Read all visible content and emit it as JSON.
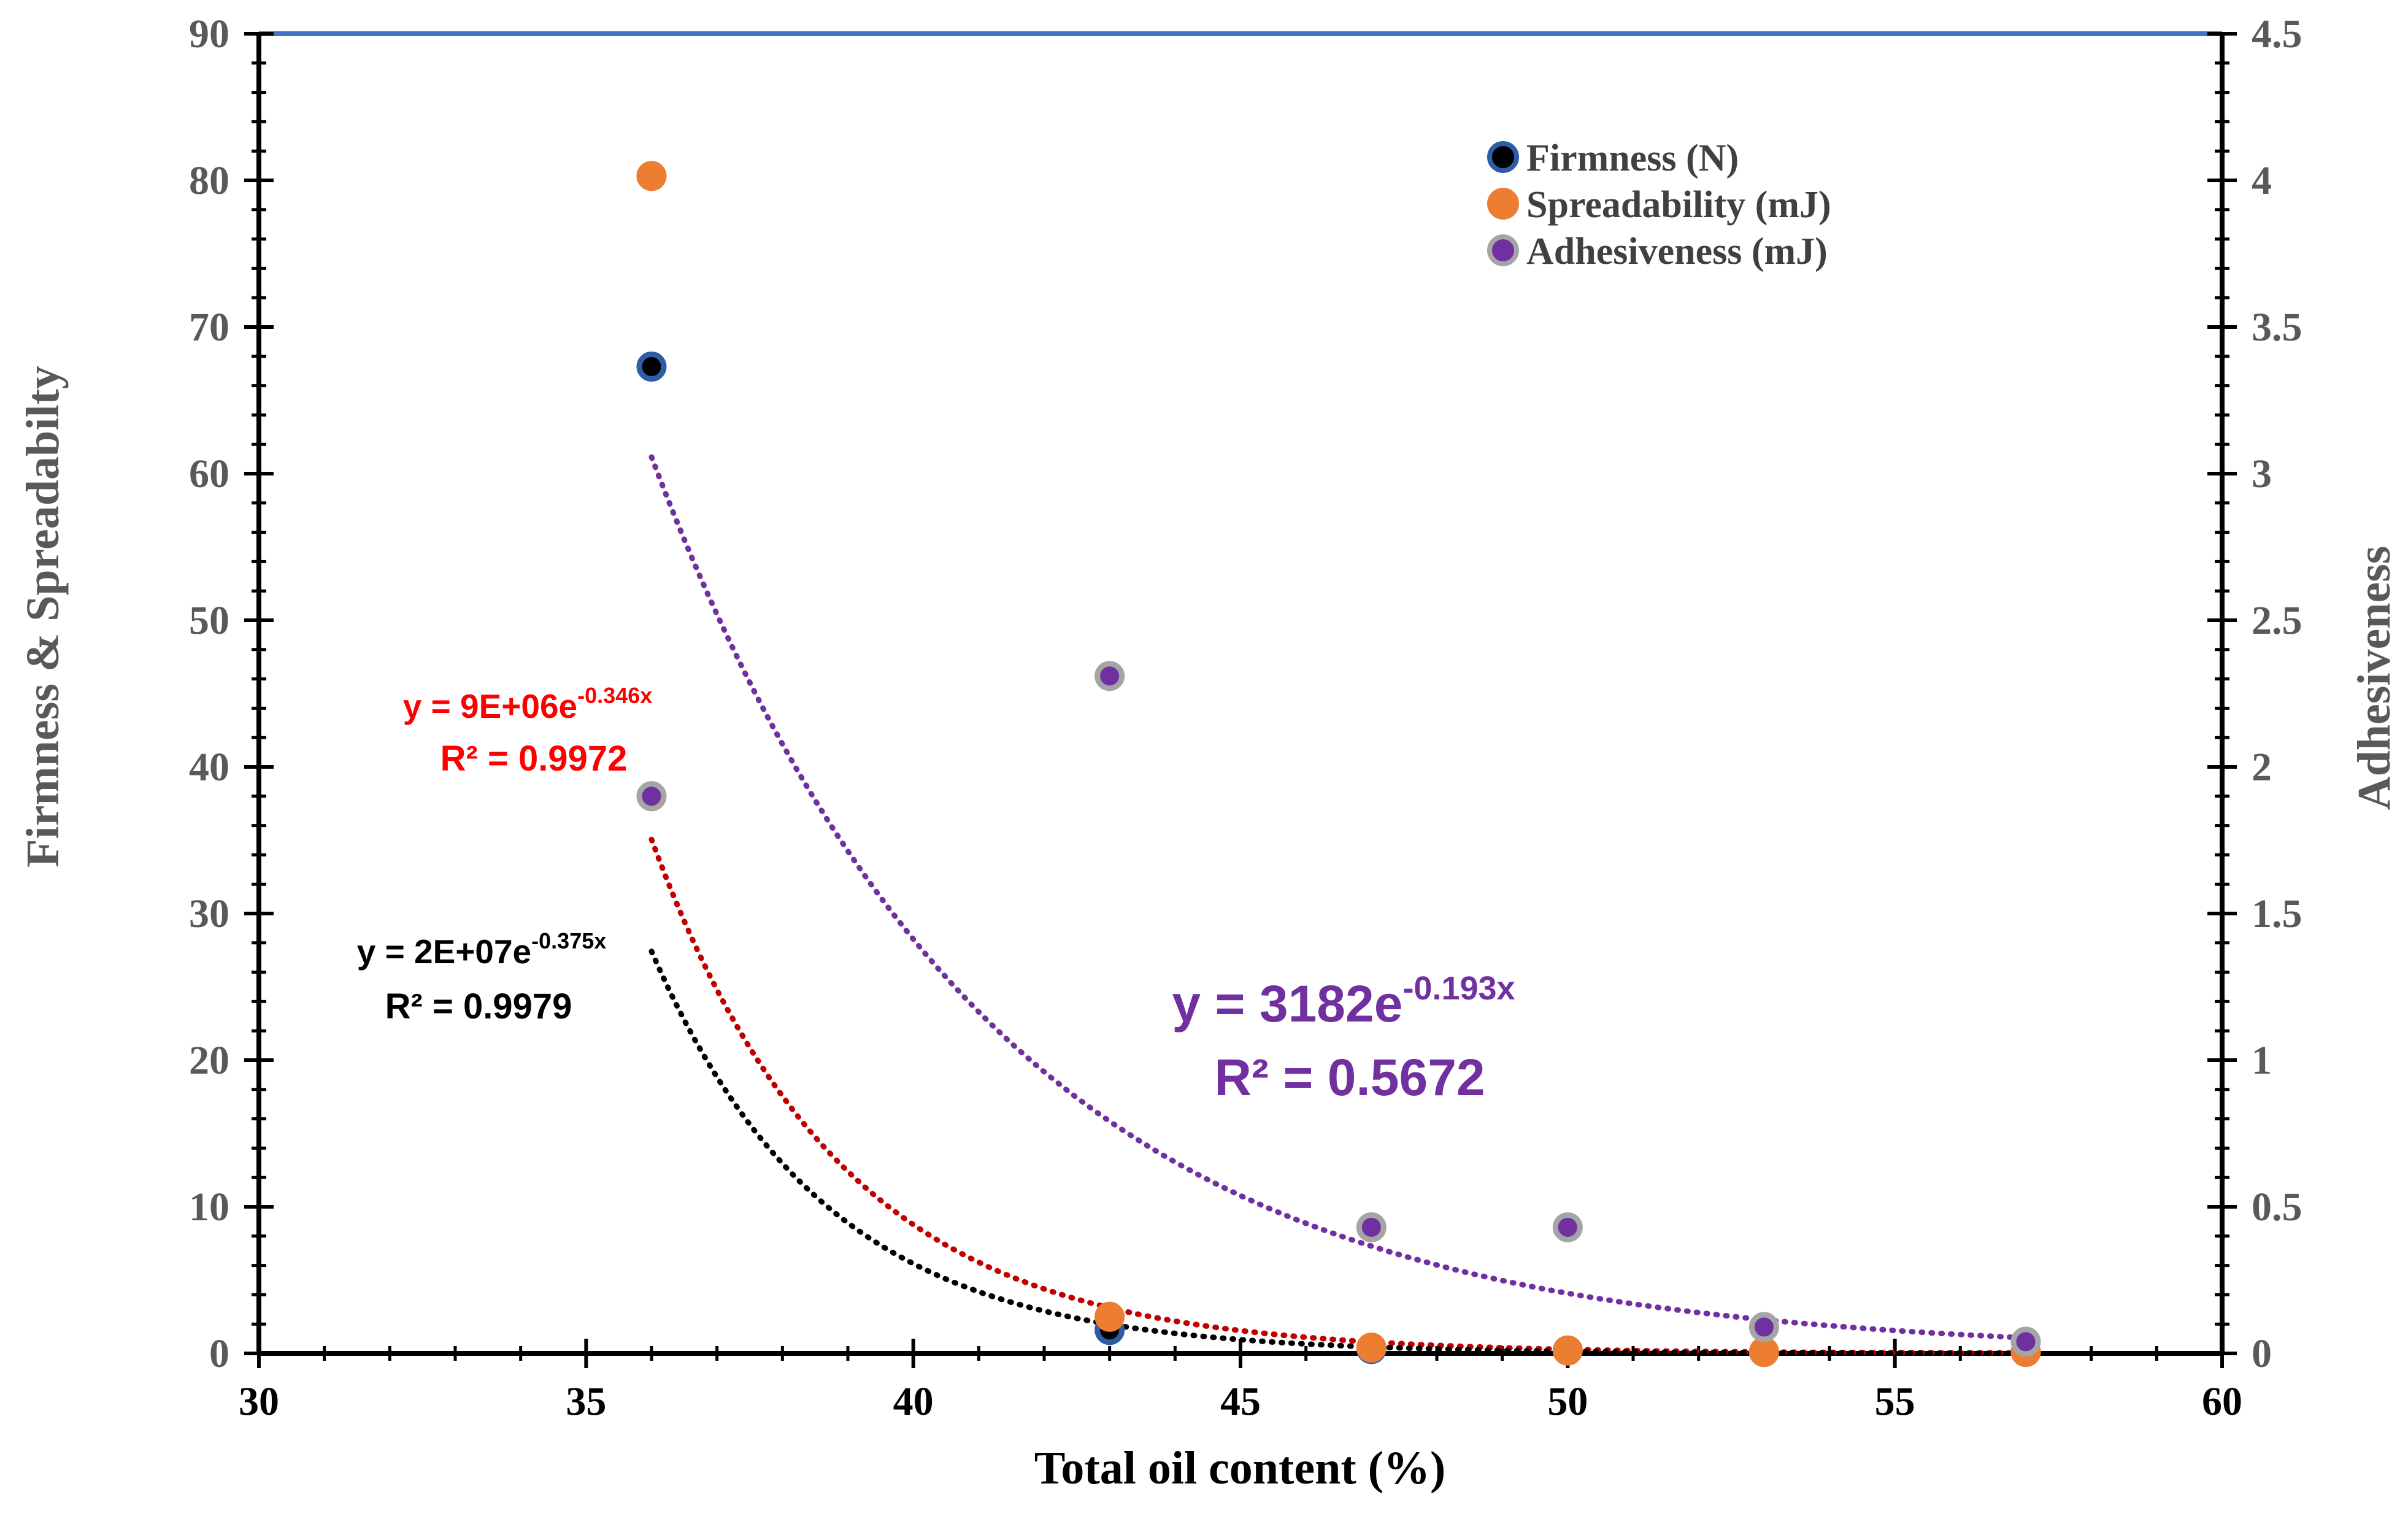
{
  "chart_data": {
    "type": "scatter",
    "xlabel": "Total oil content (%)",
    "ylabel": "Firmness & Spreadabilty",
    "y2label": "Adhesiveness",
    "xlim": [
      30,
      60
    ],
    "ylim": [
      0,
      90
    ],
    "y2lim": [
      0,
      4.5
    ],
    "x_ticks": [
      "30",
      "35",
      "40",
      "45",
      "50",
      "55",
      "60"
    ],
    "y_ticks": [
      "0",
      "10",
      "20",
      "30",
      "40",
      "50",
      "60",
      "70",
      "80",
      "90"
    ],
    "y2_ticks": [
      "0",
      "0.5",
      "1",
      "1.5",
      "2",
      "2.5",
      "3",
      "3.5",
      "4",
      "4.5"
    ],
    "grid": false,
    "legend_position": "top-right",
    "series": [
      {
        "name": "Firmness (N)",
        "axis": "left",
        "color": "#000000",
        "edge_color": "#2E5DA8",
        "x": [
          36,
          43,
          47,
          50,
          53,
          57
        ],
        "y": [
          67.3,
          1.6,
          0.3,
          0.2,
          0.1,
          0.1
        ],
        "trendline": {
          "a": 20000000.0,
          "b": -0.375,
          "x_range": [
            36,
            57
          ],
          "color": "#000000"
        },
        "equation": "y = 2E+07e",
        "exponent": "-0.375x",
        "r2": "R² = 0.9979"
      },
      {
        "name": "Spreadability (mJ)",
        "axis": "left",
        "color": "#ED7D31",
        "edge_color": "#ED7D31",
        "x": [
          36,
          43,
          47,
          50,
          53,
          57
        ],
        "y": [
          80.3,
          2.5,
          0.4,
          0.2,
          0.1,
          0.1
        ],
        "trendline": {
          "a": 9000000.0,
          "b": -0.346,
          "x_range": [
            36,
            57
          ],
          "color": "#C00000"
        },
        "equation": "y = 9E+06e",
        "exponent": "-0.346x",
        "r2": "R² = 0.9972"
      },
      {
        "name": "Adhesiveness (mJ)",
        "axis": "right",
        "color": "#7030A0",
        "edge_color": "#A5A5A5",
        "x": [
          36,
          43,
          47,
          50,
          53,
          57
        ],
        "y": [
          1.9,
          2.31,
          0.43,
          0.43,
          0.09,
          0.04
        ],
        "trendline": {
          "a": 3182,
          "b": -0.193,
          "x_range": [
            36,
            57
          ],
          "color": "#7030A0"
        },
        "equation": "y = 3182e",
        "exponent": "-0.193x",
        "r2": "R² = 0.5672"
      }
    ],
    "top_border_color": "#4472C4"
  }
}
